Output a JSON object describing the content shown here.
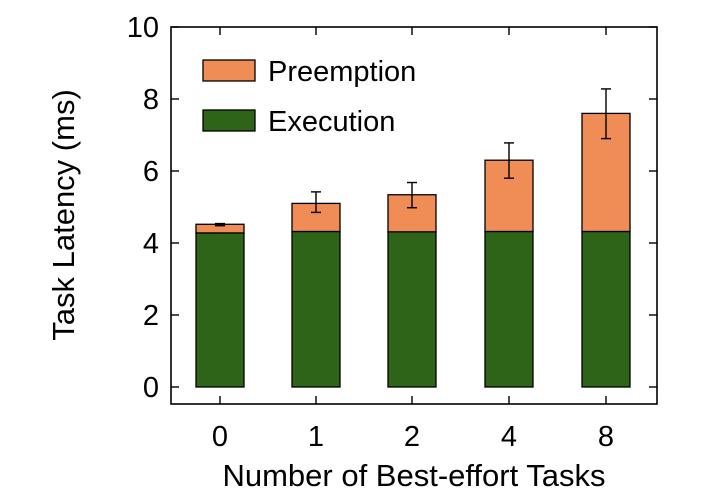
{
  "chart_data": {
    "type": "bar",
    "stacked": true,
    "xlabel": "Number of Best-effort Tasks",
    "ylabel": "Task Latency (ms)",
    "categories": [
      "0",
      "1",
      "2",
      "4",
      "8"
    ],
    "ylim": [
      0,
      10
    ],
    "yticks": [
      "0",
      "2",
      "4",
      "6",
      "8",
      "10"
    ],
    "grid": false,
    "legend_position": "top-left",
    "series": [
      {
        "name": "Execution",
        "color": "#2d6418",
        "values": [
          4.28,
          4.32,
          4.31,
          4.32,
          4.32
        ]
      },
      {
        "name": "Preemption",
        "color": "#f08c55",
        "values": [
          0.24,
          0.78,
          1.03,
          1.98,
          3.28
        ]
      }
    ],
    "error_bars": {
      "series": "total",
      "lower": [
        4.48,
        4.85,
        4.98,
        5.8,
        6.9
      ],
      "upper": [
        4.54,
        5.42,
        5.68,
        6.78,
        8.28
      ]
    }
  }
}
